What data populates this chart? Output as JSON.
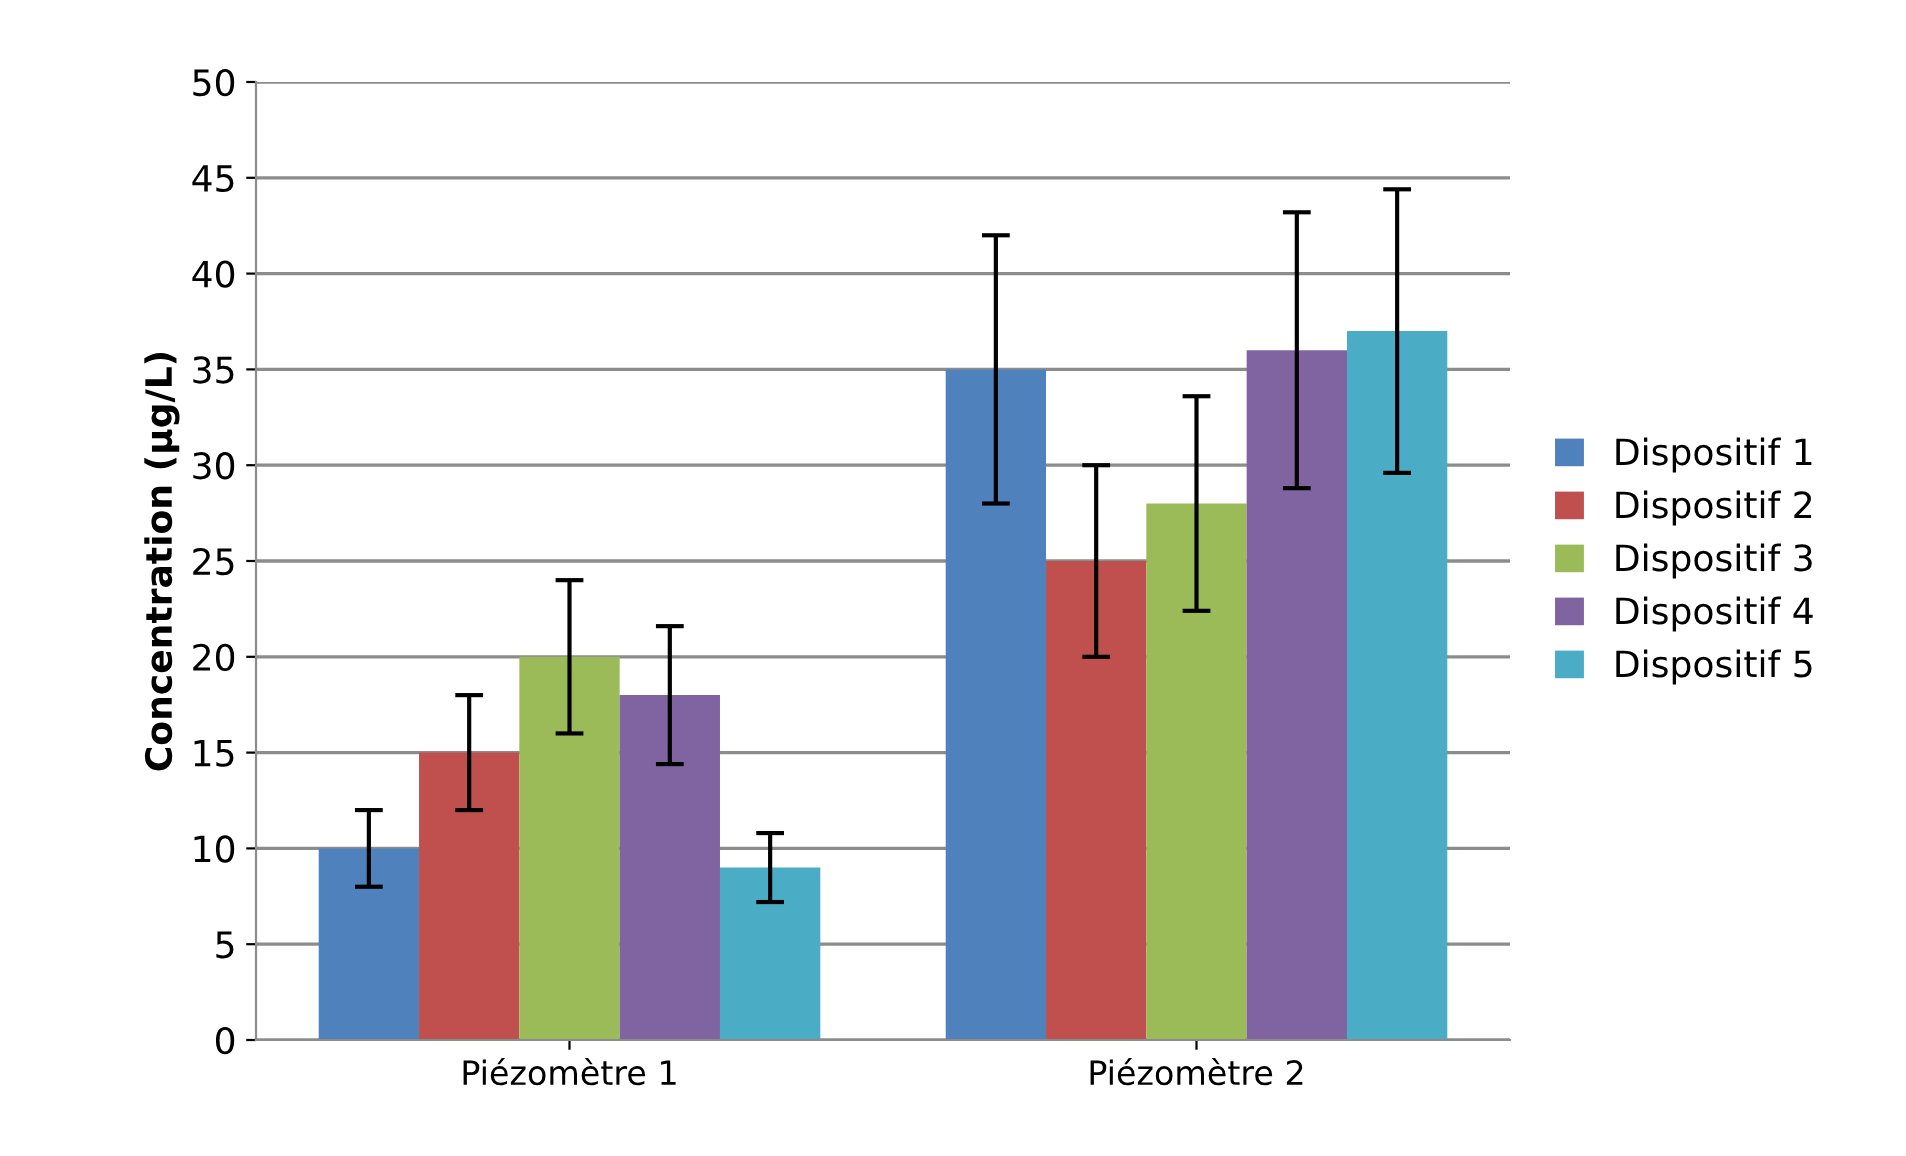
{
  "chart_data": {
    "type": "bar",
    "ylabel": "Concentration (µg/L)",
    "categories": [
      "Piézomètre 1",
      "Piézomètre 2"
    ],
    "series": [
      {
        "name": "Dispositif 1",
        "color": "#4f81bd",
        "values": [
          10,
          35
        ],
        "errors": [
          2,
          7
        ]
      },
      {
        "name": "Dispositif 2",
        "color": "#c0504d",
        "values": [
          15,
          25
        ],
        "errors": [
          3,
          5
        ]
      },
      {
        "name": "Dispositif 3",
        "color": "#9bbb59",
        "values": [
          20,
          28
        ],
        "errors": [
          4,
          5.6
        ]
      },
      {
        "name": "Dispositif 4",
        "color": "#8064a2",
        "values": [
          18,
          36
        ],
        "errors": [
          3.6,
          7.2
        ]
      },
      {
        "name": "Dispositif 5",
        "color": "#4bacc6",
        "values": [
          9,
          37
        ],
        "errors": [
          1.8,
          7.4
        ]
      }
    ],
    "ylim": [
      0,
      50
    ],
    "yticks": [
      0,
      5,
      10,
      15,
      20,
      25,
      30,
      35,
      40,
      45,
      50
    ],
    "grid": "y",
    "legend": "right"
  }
}
